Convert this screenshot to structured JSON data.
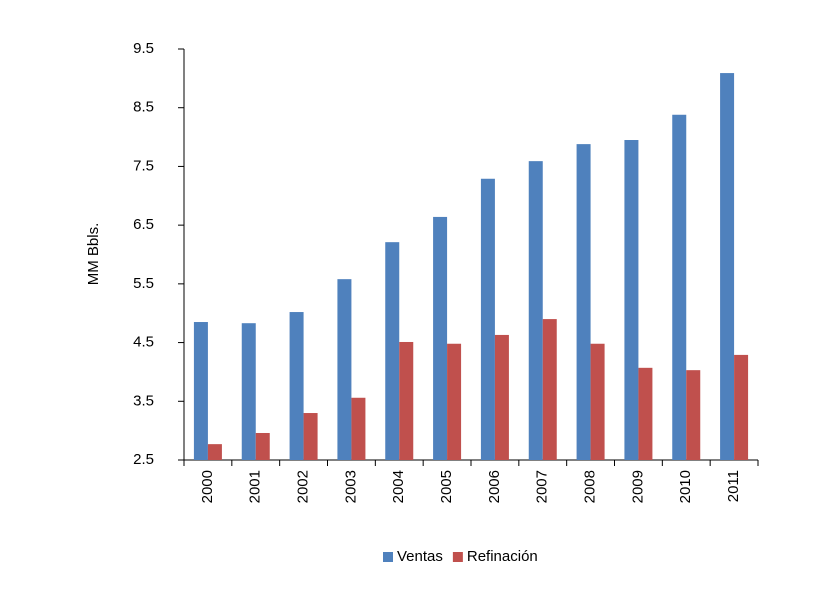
{
  "chart_data": {
    "type": "bar",
    "y_label": "MM Bbls.",
    "categories": [
      "2000",
      "2001",
      "2002",
      "2003",
      "2004",
      "2005",
      "2006",
      "2007",
      "2008",
      "2009",
      "2010",
      "2011"
    ],
    "series": [
      {
        "name": "Ventas",
        "color": "#4f81bd",
        "values": [
          4.85,
          4.83,
          5.02,
          5.58,
          6.21,
          6.64,
          7.29,
          7.59,
          7.88,
          7.95,
          8.38,
          9.09
        ]
      },
      {
        "name": "Refinación",
        "color": "#c0504d",
        "values": [
          2.77,
          2.96,
          3.3,
          3.56,
          4.51,
          4.48,
          4.63,
          4.9,
          4.48,
          4.07,
          4.03,
          4.29
        ]
      }
    ],
    "ylim": [
      2.5,
      9.5
    ],
    "yticks": [
      2.5,
      3.5,
      4.5,
      5.5,
      6.5,
      7.5,
      8.5,
      9.5
    ],
    "grid": false,
    "legend": "bottom"
  }
}
